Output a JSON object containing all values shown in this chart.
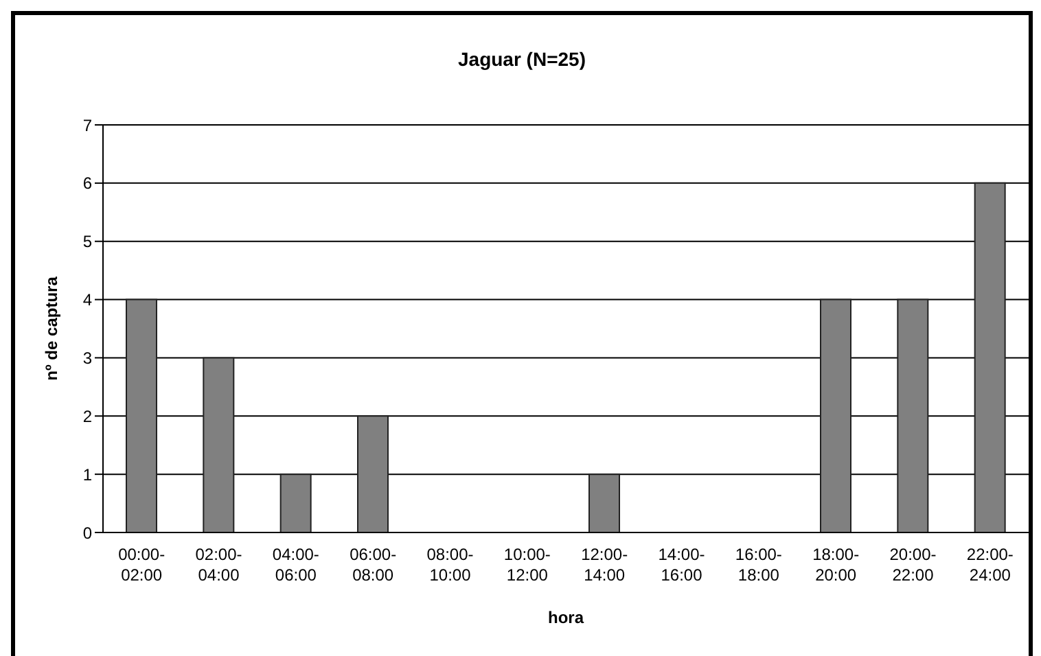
{
  "chart_data": {
    "type": "bar",
    "title": "Jaguar (N=25)",
    "xlabel": "hora",
    "ylabel": "nº de captura",
    "categories": [
      "00:00-02:00",
      "02:00-04:00",
      "04:00-06:00",
      "06:00-08:00",
      "08:00-10:00",
      "10:00-12:00",
      "12:00-14:00",
      "14:00-16:00",
      "16:00-18:00",
      "18:00-20:00",
      "20:00-22:00",
      "22:00-24:00"
    ],
    "values": [
      4,
      3,
      1,
      2,
      0,
      0,
      1,
      0,
      0,
      4,
      4,
      6
    ],
    "color": "#808080",
    "ylim": [
      0,
      7
    ],
    "yticks": [
      0,
      1,
      2,
      3,
      4,
      5,
      6,
      7
    ],
    "grid": "y",
    "legend": false
  }
}
